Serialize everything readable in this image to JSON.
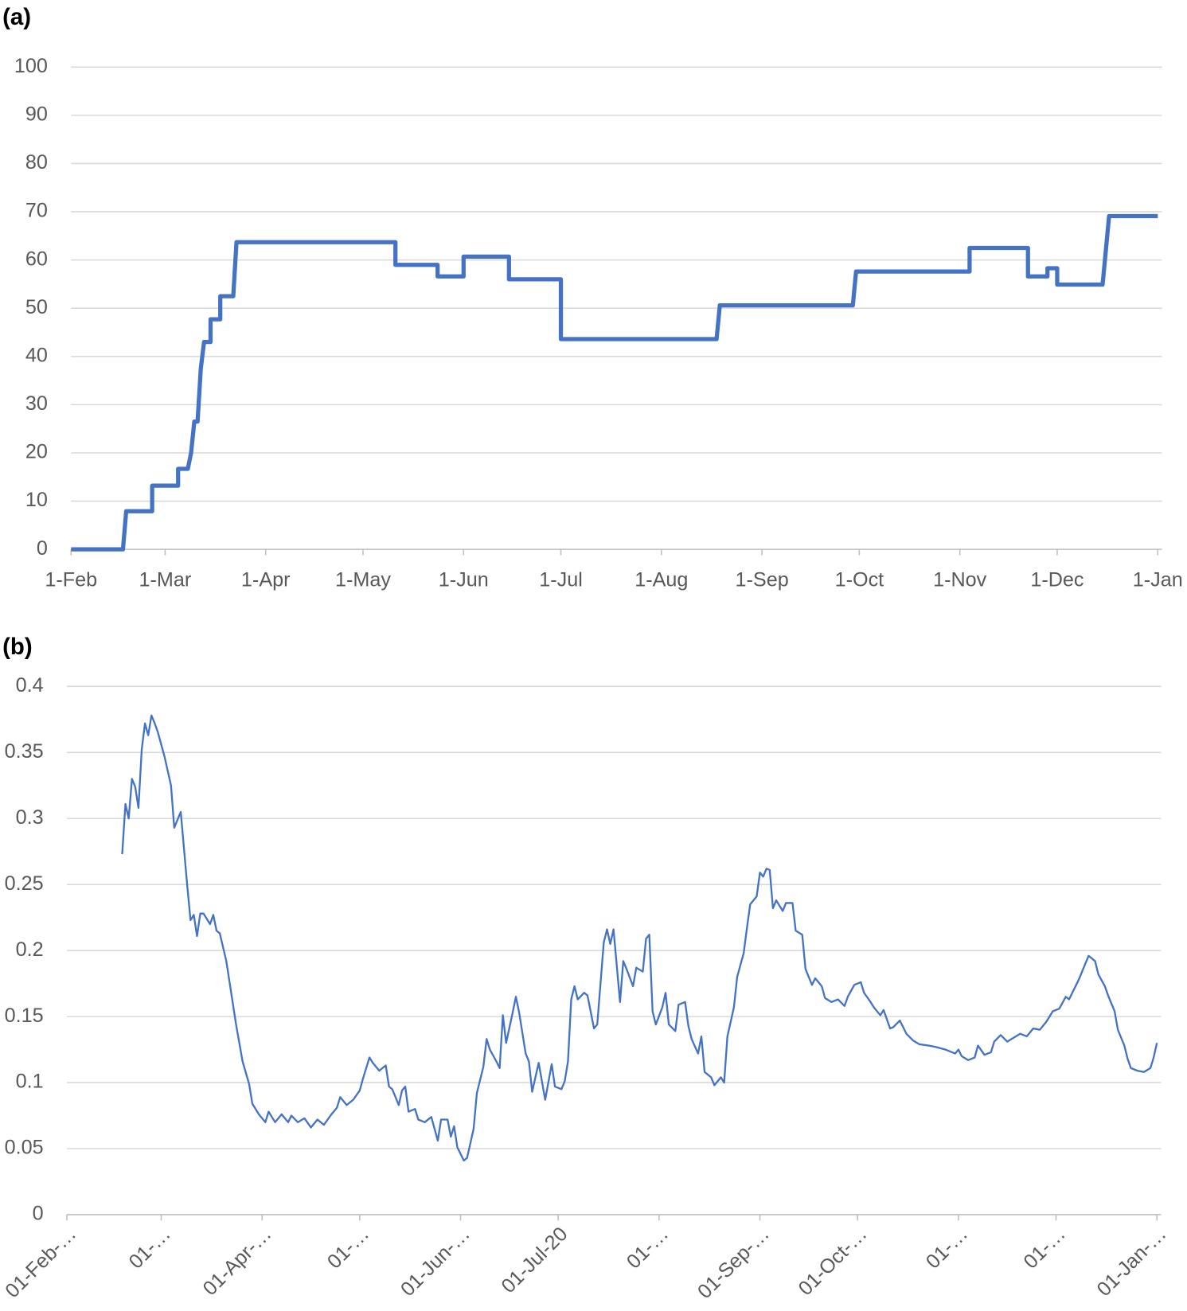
{
  "chart_data": [
    {
      "type": "line",
      "label": "(a)",
      "color": "#4472c4",
      "grid": true,
      "xlim": [
        0,
        335
      ],
      "ylim": [
        0,
        100
      ],
      "yticks": [
        0,
        10,
        20,
        30,
        40,
        50,
        60,
        70,
        80,
        90,
        100
      ],
      "xticks": [
        {
          "value": 0,
          "label": "1-Feb"
        },
        {
          "value": 29,
          "label": "1-Mar"
        },
        {
          "value": 60,
          "label": "1-Apr"
        },
        {
          "value": 90,
          "label": "1-May"
        },
        {
          "value": 121,
          "label": "1-Jun"
        },
        {
          "value": 151,
          "label": "1-Jul"
        },
        {
          "value": 182,
          "label": "1-Aug"
        },
        {
          "value": 213,
          "label": "1-Sep"
        },
        {
          "value": 243,
          "label": "1-Oct"
        },
        {
          "value": 274,
          "label": "1-Nov"
        },
        {
          "value": 304,
          "label": "1-Dec"
        },
        {
          "value": 335,
          "label": "1-Jan"
        }
      ],
      "x": [
        0,
        16,
        17,
        25,
        25,
        33,
        33,
        36,
        37,
        38,
        39,
        40,
        41,
        43,
        43,
        46,
        46,
        50,
        51,
        100,
        100,
        113,
        113,
        121,
        121,
        135,
        135,
        151,
        151,
        199,
        200,
        241,
        242,
        277,
        277,
        295,
        295,
        301,
        301,
        304,
        304,
        318,
        320,
        335
      ],
      "values": [
        0,
        0,
        7.9,
        7.9,
        13.2,
        13.2,
        16.7,
        16.7,
        20,
        26.5,
        26.5,
        37.5,
        43,
        43,
        47.7,
        47.7,
        52.5,
        52.5,
        63.7,
        63.7,
        59,
        59,
        56.6,
        56.6,
        60.7,
        60.7,
        56,
        56,
        43.6,
        43.6,
        50.6,
        50.6,
        57.6,
        57.6,
        62.5,
        62.5,
        56.6,
        56.6,
        58.3,
        58.3,
        54.9,
        54.9,
        69.1,
        69.1
      ]
    },
    {
      "type": "line",
      "label": "(b)",
      "color": "#4472c4",
      "grid": true,
      "xlim": [
        0,
        335
      ],
      "ylim": [
        0,
        0.4
      ],
      "yticks": [
        0,
        0.05,
        0.1,
        0.15,
        0.2,
        0.25,
        0.3,
        0.35,
        0.4
      ],
      "xticks": [
        {
          "value": 0,
          "label": "01-Feb-…"
        },
        {
          "value": 29,
          "label": "01-…"
        },
        {
          "value": 60,
          "label": "01-Apr-…"
        },
        {
          "value": 90,
          "label": "01-…"
        },
        {
          "value": 121,
          "label": "01-Jun-…"
        },
        {
          "value": 151,
          "label": "01-Jul-20"
        },
        {
          "value": 182,
          "label": "01-…"
        },
        {
          "value": 213,
          "label": "01-Sep-…"
        },
        {
          "value": 243,
          "label": "01-Oct-…"
        },
        {
          "value": 274,
          "label": "01-…"
        },
        {
          "value": 304,
          "label": "01-…"
        },
        {
          "value": 335,
          "label": "01-Jan-…"
        }
      ],
      "x": [
        17,
        18,
        19,
        20,
        21,
        22,
        23,
        24,
        25,
        26,
        27,
        28,
        30,
        32,
        33,
        35,
        37,
        38,
        39,
        40,
        41,
        42,
        44,
        45,
        46,
        47,
        49,
        52,
        54,
        56,
        57,
        59,
        61,
        62,
        64,
        66,
        68,
        69,
        71,
        73,
        75,
        77,
        79,
        81,
        83,
        84,
        86,
        88,
        90,
        91,
        93,
        94,
        96,
        98,
        99,
        100,
        102,
        103,
        104,
        105,
        107,
        108,
        110,
        112,
        114,
        115,
        117,
        118,
        119,
        120,
        122,
        123,
        125,
        126,
        128,
        129,
        130,
        132,
        133,
        134,
        135,
        137,
        138,
        139,
        141,
        142,
        143,
        145,
        147,
        149,
        150,
        152,
        153,
        154,
        155,
        156,
        157,
        159,
        160,
        162,
        163,
        165,
        166,
        167,
        168,
        170,
        171,
        172,
        174,
        175,
        177,
        178,
        179,
        180,
        181,
        183,
        184,
        185,
        187,
        188,
        190,
        191,
        192,
        194,
        195,
        196,
        198,
        199,
        201,
        202,
        203,
        205,
        206,
        208,
        209,
        210,
        212,
        213,
        214,
        215,
        216,
        217,
        218,
        220,
        221,
        223,
        224,
        226,
        227,
        229,
        230,
        232,
        233,
        235,
        237,
        239,
        240,
        242,
        244,
        245,
        247,
        248,
        250,
        251,
        253,
        254,
        256,
        258,
        260,
        262,
        265,
        267,
        270,
        273,
        274,
        275,
        277,
        279,
        280,
        282,
        284,
        285,
        287,
        289,
        291,
        293,
        295,
        297,
        299,
        301,
        303,
        305,
        307,
        308,
        310,
        311,
        313,
        314,
        316,
        317,
        319,
        320,
        322,
        323,
        325,
        326,
        327,
        329,
        331,
        333,
        334,
        335
      ],
      "values": [
        0.273,
        0.311,
        0.3,
        0.33,
        0.324,
        0.308,
        0.352,
        0.372,
        0.363,
        0.378,
        0.372,
        0.365,
        0.347,
        0.325,
        0.293,
        0.305,
        0.249,
        0.223,
        0.227,
        0.211,
        0.228,
        0.228,
        0.22,
        0.227,
        0.215,
        0.213,
        0.192,
        0.144,
        0.116,
        0.099,
        0.084,
        0.076,
        0.07,
        0.078,
        0.07,
        0.076,
        0.07,
        0.075,
        0.07,
        0.073,
        0.066,
        0.072,
        0.068,
        0.075,
        0.081,
        0.089,
        0.083,
        0.087,
        0.094,
        0.103,
        0.119,
        0.115,
        0.109,
        0.113,
        0.097,
        0.095,
        0.083,
        0.094,
        0.097,
        0.078,
        0.08,
        0.072,
        0.07,
        0.074,
        0.056,
        0.072,
        0.072,
        0.059,
        0.067,
        0.051,
        0.041,
        0.043,
        0.065,
        0.092,
        0.112,
        0.133,
        0.125,
        0.116,
        0.111,
        0.151,
        0.13,
        0.153,
        0.165,
        0.153,
        0.122,
        0.116,
        0.093,
        0.115,
        0.087,
        0.114,
        0.097,
        0.095,
        0.101,
        0.116,
        0.163,
        0.173,
        0.163,
        0.168,
        0.166,
        0.141,
        0.144,
        0.206,
        0.216,
        0.205,
        0.216,
        0.161,
        0.192,
        0.186,
        0.173,
        0.187,
        0.184,
        0.209,
        0.212,
        0.154,
        0.144,
        0.157,
        0.168,
        0.144,
        0.139,
        0.159,
        0.161,
        0.143,
        0.133,
        0.122,
        0.135,
        0.108,
        0.104,
        0.098,
        0.104,
        0.1,
        0.135,
        0.157,
        0.18,
        0.198,
        0.217,
        0.235,
        0.241,
        0.259,
        0.256,
        0.262,
        0.261,
        0.232,
        0.238,
        0.23,
        0.236,
        0.236,
        0.215,
        0.212,
        0.186,
        0.174,
        0.179,
        0.173,
        0.164,
        0.161,
        0.163,
        0.158,
        0.165,
        0.174,
        0.176,
        0.168,
        0.161,
        0.157,
        0.151,
        0.155,
        0.141,
        0.142,
        0.147,
        0.137,
        0.132,
        0.129,
        0.128,
        0.127,
        0.125,
        0.122,
        0.125,
        0.12,
        0.117,
        0.119,
        0.128,
        0.121,
        0.123,
        0.131,
        0.136,
        0.131,
        0.134,
        0.137,
        0.135,
        0.141,
        0.14,
        0.146,
        0.154,
        0.156,
        0.165,
        0.163,
        0.173,
        0.178,
        0.19,
        0.196,
        0.192,
        0.182,
        0.173,
        0.166,
        0.154,
        0.14,
        0.128,
        0.118,
        0.111,
        0.109,
        0.108,
        0.111,
        0.119,
        0.13
      ]
    }
  ]
}
